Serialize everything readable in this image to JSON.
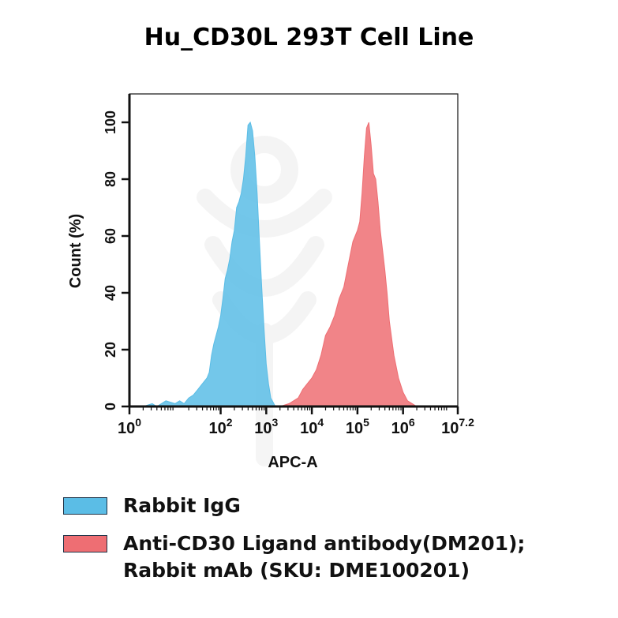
{
  "chart_data": {
    "type": "area",
    "title": "Hu_CD30L 293T Cell Line",
    "xlabel": "APC-A",
    "ylabel": "Count  (%)",
    "xscale": "log",
    "xlim": [
      0,
      7.2
    ],
    "ylim": [
      0,
      110
    ],
    "x_ticks": [
      {
        "pos": 0,
        "base": "10",
        "exp": "0"
      },
      {
        "pos": 2,
        "base": "10",
        "exp": "2"
      },
      {
        "pos": 3,
        "base": "10",
        "exp": "3"
      },
      {
        "pos": 4,
        "base": "10",
        "exp": "4"
      },
      {
        "pos": 5,
        "base": "10",
        "exp": "5"
      },
      {
        "pos": 6,
        "base": "10",
        "exp": "6"
      },
      {
        "pos": 7.2,
        "base": "10",
        "exp": "7.2"
      }
    ],
    "y_ticks": [
      0,
      20,
      40,
      60,
      80,
      100
    ],
    "legend_position": "bottom",
    "series": [
      {
        "name": "Rabbit IgG",
        "color": "#5bbde6",
        "x": [
          0.3,
          0.5,
          0.6,
          0.8,
          1.0,
          1.1,
          1.2,
          1.3,
          1.4,
          1.5,
          1.6,
          1.7,
          1.75,
          1.8,
          1.85,
          1.9,
          1.95,
          2.0,
          2.05,
          2.1,
          2.15,
          2.2,
          2.25,
          2.3,
          2.35,
          2.4,
          2.45,
          2.5,
          2.55,
          2.6,
          2.65,
          2.7,
          2.75,
          2.8,
          2.85,
          2.9,
          2.95,
          3.0,
          3.05,
          3.1,
          3.2
        ],
        "y": [
          0,
          1,
          0,
          2,
          1,
          2,
          1,
          3,
          4,
          6,
          8,
          10,
          12,
          18,
          22,
          25,
          28,
          32,
          38,
          45,
          48,
          52,
          58,
          62,
          70,
          72,
          75,
          80,
          88,
          99,
          100,
          97,
          88,
          75,
          58,
          42,
          28,
          15,
          8,
          3,
          0
        ]
      },
      {
        "name": "Anti-CD30 Ligand antibody(DM201); Rabbit mAb (SKU: DME100201)",
        "color": "#ee6e73",
        "x": [
          3.3,
          3.5,
          3.6,
          3.7,
          3.8,
          3.9,
          4.0,
          4.1,
          4.2,
          4.3,
          4.4,
          4.5,
          4.6,
          4.7,
          4.8,
          4.9,
          5.0,
          5.05,
          5.1,
          5.15,
          5.2,
          5.25,
          5.3,
          5.35,
          5.4,
          5.45,
          5.5,
          5.55,
          5.6,
          5.65,
          5.7,
          5.8,
          5.9,
          6.0,
          6.1,
          6.3
        ],
        "y": [
          0,
          1,
          2,
          3,
          6,
          8,
          10,
          13,
          18,
          25,
          28,
          32,
          38,
          42,
          50,
          58,
          62,
          65,
          75,
          88,
          98,
          100,
          92,
          82,
          80,
          72,
          62,
          55,
          48,
          40,
          30,
          18,
          10,
          5,
          2,
          0
        ]
      }
    ]
  },
  "legend": {
    "items": [
      {
        "lines": [
          "Rabbit IgG"
        ],
        "color": "#5bbde6"
      },
      {
        "lines": [
          "Anti-CD30 Ligand antibody(DM201);",
          "Rabbit mAb (SKU: DME100201)"
        ],
        "color": "#ee6e73"
      }
    ]
  }
}
